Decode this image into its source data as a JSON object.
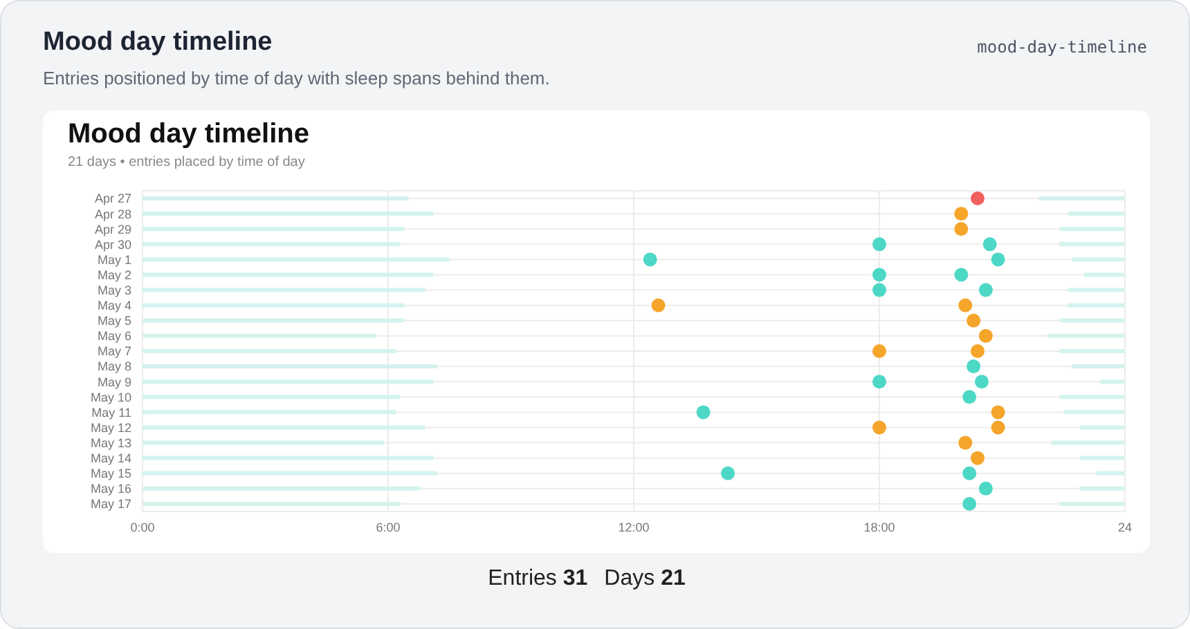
{
  "chart_data": {
    "type": "scatter",
    "title": "Mood day timeline",
    "subtitle": "Entries positioned by time of day with sleep spans behind them.",
    "annotations": [
      "mood-day-timeline",
      "Mood day timeline",
      "21 days • entries placed by time of day",
      "Entries 31",
      "Days 21"
    ],
    "orientation": "horizontal",
    "categories": [
      "Apr 27",
      "Apr 28",
      "Apr 29",
      "Apr 30",
      "May 1",
      "May 2",
      "May 3",
      "May 4",
      "May 5",
      "May 6",
      "May 7",
      "May 8",
      "May 9",
      "May 10",
      "May 11",
      "May 12",
      "May 13",
      "May 14",
      "May 15",
      "May 16",
      "May 17"
    ],
    "xlim": [
      0,
      24
    ],
    "xticks": [
      {
        "value": 0,
        "label": "0:00"
      },
      {
        "value": 6,
        "label": "6:00"
      },
      {
        "value": 12,
        "label": "12:00"
      },
      {
        "value": 18,
        "label": "18:00"
      },
      24
    ],
    "grid": true,
    "marker": "circle",
    "series": [
      {
        "type": "bar",
        "color": "#d4f3ee",
        "base": [
          0,
          0,
          0,
          0,
          0,
          0,
          0,
          0,
          0,
          0,
          0,
          0,
          0,
          0,
          0,
          0,
          0,
          0,
          0,
          0,
          0
        ],
        "values": [
          6.5,
          7.1,
          6.4,
          6.3,
          7.5,
          7.1,
          6.9,
          6.4,
          6.4,
          5.7,
          6.2,
          7.2,
          7.1,
          6.3,
          6.2,
          6.9,
          5.9,
          7.1,
          7.2,
          6.8,
          6.3
        ]
      },
      {
        "type": "bar",
        "color": "#d4f3ee",
        "base": [
          21.9,
          22.6,
          22.4,
          22.4,
          22.7,
          23.0,
          22.6,
          22.6,
          22.4,
          22.1,
          22.4,
          22.7,
          23.4,
          22.4,
          22.5,
          22.9,
          22.2,
          22.9,
          23.3,
          22.9,
          22.4
        ],
        "values": [
          2.1,
          1.4,
          1.6,
          1.6,
          1.3,
          1.0,
          1.4,
          1.4,
          1.6,
          1.9,
          1.6,
          1.3,
          0.6,
          1.6,
          1.5,
          1.1,
          1.8,
          1.1,
          0.7,
          1.1,
          1.6
        ]
      },
      {
        "color": "#f0605d",
        "values": [
          20.4,
          null,
          null,
          null,
          null,
          null,
          null,
          null,
          null,
          null,
          null,
          null,
          null,
          null,
          null,
          null,
          null,
          null,
          null,
          null,
          null
        ]
      },
      {
        "color": "#f5a52a",
        "values": [
          null,
          20.0,
          20.0,
          null,
          null,
          null,
          null,
          12.6,
          20.3,
          20.6,
          18.0,
          null,
          null,
          null,
          20.9,
          18.0,
          20.1,
          20.4,
          null,
          null,
          null
        ]
      },
      {
        "color": "#f5a52a",
        "values": [
          null,
          null,
          null,
          null,
          null,
          null,
          null,
          20.1,
          null,
          null,
          20.4,
          null,
          null,
          null,
          null,
          20.9,
          null,
          null,
          null,
          null,
          null
        ]
      },
      {
        "color": "#4dd8c6",
        "values": [
          null,
          null,
          null,
          18.0,
          12.4,
          18.0,
          18.0,
          null,
          null,
          null,
          null,
          20.3,
          18.0,
          20.2,
          13.7,
          null,
          null,
          null,
          14.3,
          20.6,
          20.2
        ]
      },
      {
        "color": "#4dd8c6",
        "values": [
          null,
          null,
          null,
          20.7,
          20.9,
          20.0,
          20.6,
          null,
          null,
          null,
          null,
          null,
          20.5,
          null,
          null,
          null,
          null,
          null,
          20.2,
          null,
          null
        ]
      }
    ]
  }
}
